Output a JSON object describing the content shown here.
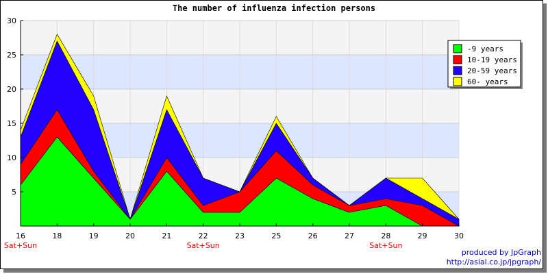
{
  "chart_data": {
    "type": "area",
    "stacked": true,
    "title": "The number of influenza infection persons",
    "categories": [
      "16",
      "18",
      "19",
      "20",
      "21",
      "22",
      "23",
      "25",
      "26",
      "27",
      "28",
      "29",
      "30"
    ],
    "weekend_label": "Sat+Sun",
    "weekend_categories": [
      "16",
      "22",
      "28"
    ],
    "ylim": [
      0,
      30
    ],
    "yticks": [
      5,
      10,
      15,
      20,
      25,
      30
    ],
    "grid": true,
    "series": [
      {
        "name": "-9 years",
        "color": "#00ff00",
        "values": [
          6,
          13,
          7,
          1,
          8,
          2,
          2,
          7,
          4,
          2,
          3,
          0,
          0
        ]
      },
      {
        "name": "10-19 years",
        "color": "#ff0000",
        "values": [
          3,
          4,
          1,
          0,
          2,
          1,
          3,
          4,
          2,
          1,
          1,
          3,
          0
        ]
      },
      {
        "name": "20-59 years",
        "color": "#2200ff",
        "values": [
          4,
          10,
          9,
          0,
          7,
          4,
          0,
          4,
          1,
          0,
          3,
          1,
          1
        ]
      },
      {
        "name": "60- years",
        "color": "#ffff00",
        "values": [
          1,
          1,
          2,
          0,
          2,
          0,
          0,
          1,
          0,
          0,
          0,
          3,
          0
        ]
      }
    ],
    "legend_position": "top-right"
  },
  "credit": {
    "line1": "produced by JpGraph",
    "line2": "http://asial.co.jp/jpgraph/"
  },
  "colors": {
    "band_blue": "#dde6ff",
    "band_gray": "#f4f4f4",
    "weekend_label": "#ff0000",
    "credit": "#0000cc"
  }
}
